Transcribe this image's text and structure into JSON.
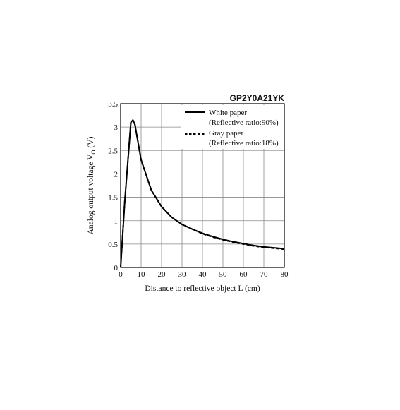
{
  "chart_data": {
    "type": "line",
    "title": "GP2Y0A21YK",
    "xlabel": "Distance to reflective object L (cm)",
    "ylabel": "Analog output voltage V",
    "ylabel_subscript": "O",
    "ylabel_unit": " (V)",
    "xlim": [
      0,
      80
    ],
    "ylim": [
      0,
      3.5
    ],
    "xticks": [
      0,
      10,
      20,
      30,
      40,
      50,
      60,
      70,
      80
    ],
    "yticks": [
      0,
      0.5,
      1,
      1.5,
      2,
      2.5,
      3,
      3.5
    ],
    "xtick_labels": [
      "0",
      "10",
      "20",
      "30",
      "40",
      "50",
      "60",
      "70",
      "80"
    ],
    "ytick_labels": [
      "0",
      "0.5",
      "1",
      "1.5",
      "2",
      "2.5",
      "3",
      "3.5"
    ],
    "grid": true,
    "legend_position": "top-right",
    "series": [
      {
        "name": "White paper",
        "name_line2": "(Reflective ratio:90%)",
        "style": "solid",
        "color": "#000000",
        "x": [
          0,
          2,
          5,
          6,
          7,
          10,
          15,
          20,
          25,
          30,
          35,
          40,
          45,
          50,
          55,
          60,
          65,
          70,
          75,
          80
        ],
        "y": [
          0,
          1.4,
          3.1,
          3.15,
          3.05,
          2.3,
          1.65,
          1.3,
          1.07,
          0.92,
          0.82,
          0.73,
          0.66,
          0.6,
          0.55,
          0.51,
          0.47,
          0.44,
          0.42,
          0.4
        ]
      },
      {
        "name": "Gray paper",
        "name_line2": "(Reflective ratio:18%)",
        "style": "dashed",
        "color": "#000000",
        "x": [
          0,
          2,
          5,
          6,
          7,
          10,
          15,
          20,
          25,
          30,
          35,
          40,
          45,
          50,
          55,
          60,
          65,
          70,
          75,
          80
        ],
        "y": [
          0,
          1.4,
          3.1,
          3.15,
          3.05,
          2.3,
          1.65,
          1.3,
          1.07,
          0.92,
          0.82,
          0.72,
          0.65,
          0.59,
          0.54,
          0.5,
          0.46,
          0.43,
          0.41,
          0.39
        ]
      }
    ]
  }
}
